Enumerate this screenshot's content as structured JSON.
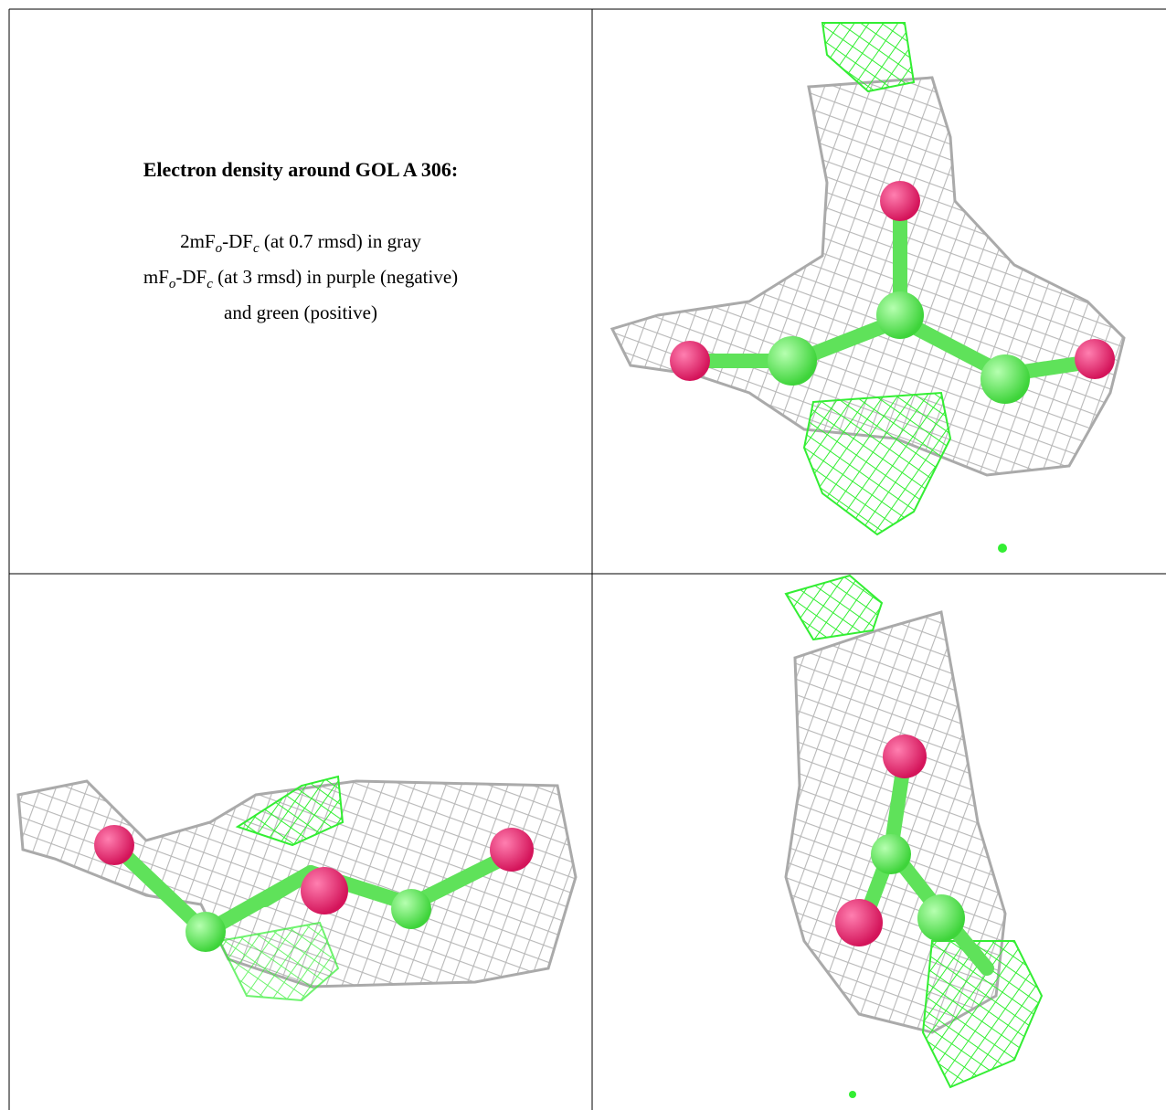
{
  "caption": {
    "title": "Electron density around GOL A 306:",
    "lines": [
      [
        "2mF",
        "o",
        "-DF",
        "c",
        " (at 0.7 rmsd) in gray"
      ],
      [
        "mF",
        "o",
        "-DF",
        "c",
        " (at 3 rmsd) in purple (negative)"
      ],
      [
        "and green (positive)"
      ]
    ]
  }
}
